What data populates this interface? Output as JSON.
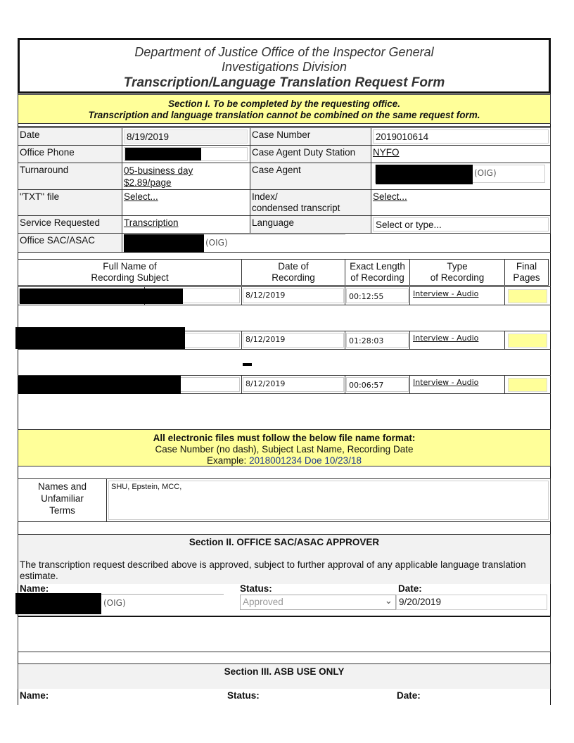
{
  "header": {
    "line1": "Department of Justice Office of the Inspector General",
    "line2": "Investigations Division",
    "title": "Transcription/Language Translation Request Form"
  },
  "section1": {
    "line1": "Section I. To be completed by the requesting office.",
    "line2": "Transcription and language translation cannot be combined on the same request form."
  },
  "info": {
    "date_label": "Date",
    "date_value": "8/19/2019",
    "case_number_label": "Case Number",
    "case_number_value": "2019010614",
    "office_phone_label": "Office Phone",
    "duty_station_label": "Case Agent Duty Station",
    "duty_station_value": "NYFO",
    "turnaround_label": "Turnaround",
    "turnaround_value_1": "05-business day",
    "turnaround_value_2": "$2.89/page",
    "case_agent_label": "Case Agent",
    "case_agent_suffix": "(OIG)",
    "txt_label": "\"TXT\" file",
    "txt_value": "Select...",
    "index_label_1": "Index/",
    "index_label_2": "condensed transcript",
    "index_value": "Select...",
    "service_label": "Service Requested",
    "service_value": "Transcription",
    "language_label": "Language",
    "language_placeholder": "Select or type...",
    "sac_label": "Office SAC/ASAC",
    "sac_suffix": "(OIG)"
  },
  "recordings": {
    "headers": [
      [
        "Full Name of",
        "Recording Subject"
      ],
      [
        "Date of",
        "Recording"
      ],
      [
        "Exact Length",
        "of Recording"
      ],
      [
        "Type",
        "of  Recording"
      ],
      [
        "Final",
        "Pages"
      ]
    ],
    "rows": [
      {
        "date": "8/12/2019",
        "length": "00:12:55",
        "type": "Interview - Audio",
        "pages": ""
      },
      {
        "date": "8/12/2019",
        "length": "01:28:03",
        "type": "Interview - Audio",
        "pages": ""
      },
      {
        "date": "8/12/2019",
        "length": "00:06:57",
        "type": "Interview - Audio",
        "pages": ""
      }
    ]
  },
  "notice": {
    "line1": "All electronic files must follow the below file name format:",
    "line2": "Case Number (no dash), Subject Last Name, Recording Date",
    "example_label": "Example:",
    "example_value": "2018001234 Doe 10/23/18"
  },
  "terms": {
    "label_1": "Names and",
    "label_2": "Unfamiliar",
    "label_3": "Terms",
    "value": "SHU, Epstein, MCC,"
  },
  "section2": {
    "title": "Section II. OFFICE SAC/ASAC APPROVER",
    "text": "The transcription request described above is approved, subject to further approval of any applicable language translation estimate.",
    "name_label": "Name:",
    "status_label": "Status:",
    "date_label": "Date:",
    "name_suffix": "(OIG)",
    "status_value": "Approved",
    "date_value": "9/20/2019"
  },
  "section3": {
    "title": "Section III.  ASB USE ONLY",
    "name_label": "Name:",
    "status_label": "Status:",
    "date_label": "Date:"
  },
  "colors": {
    "yellow": "#ffff99",
    "label_gray": "#f2f2f2",
    "example_blue": "#1f3a93"
  }
}
